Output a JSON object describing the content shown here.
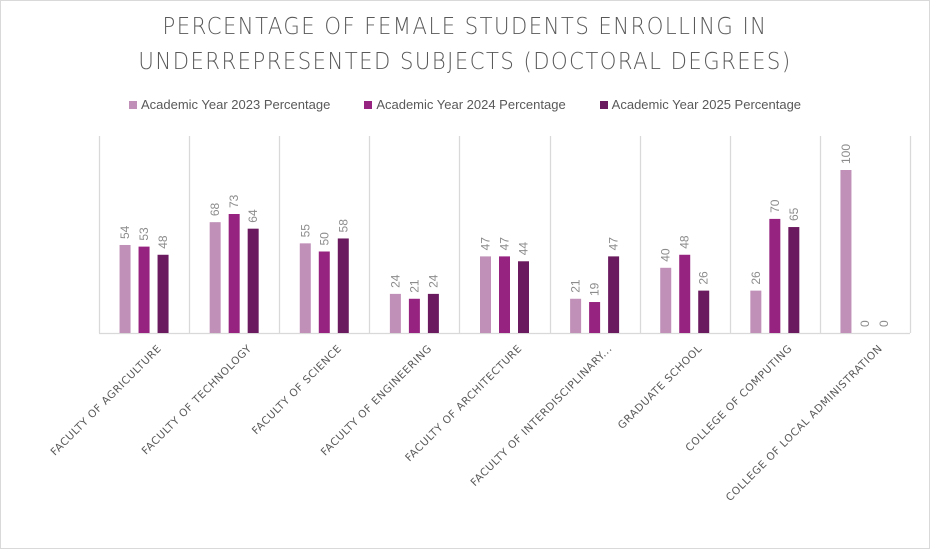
{
  "chart_data": {
    "type": "bar",
    "title": "PERCENTAGE OF FEMALE STUDENTS ENROLLING IN UNDERREPRESENTED SUBJECTS (DOCTORAL DEGREES)",
    "title_lines": [
      "PERCENTAGE OF FEMALE STUDENTS ENROLLING IN",
      "UNDERREPRESENTED SUBJECTS (DOCTORAL DEGREES)"
    ],
    "xlabel": "",
    "ylabel": "",
    "ylim": [
      0,
      120
    ],
    "grid": "vertical category separators",
    "legend_position": "top",
    "categories": [
      "FACULTY OF AGRICULTURE",
      "FACULTY OF TECHNOLOGY",
      "FACULTY OF SCIENCE",
      "FACULTY OF ENGINEERING",
      "FACULTY OF ARCHITECTURE",
      "FACULTY OF INTERDISCIPLINARY...",
      "GRADUATE SCHOOL",
      "COLLEGE OF COMPUTING",
      "COLLEGE OF LOCAL ADMINISTRATION"
    ],
    "series": [
      {
        "name": "Academic Year 2023 Percentage",
        "color": "#c090b8",
        "values": [
          54,
          68,
          55,
          24,
          47,
          21,
          40,
          26,
          100
        ]
      },
      {
        "name": "Academic Year 2024 Percentage",
        "color": "#96237f",
        "values": [
          53,
          73,
          50,
          21,
          47,
          19,
          48,
          70,
          0
        ]
      },
      {
        "name": "Academic Year 2025 Percentage",
        "color": "#6a1a5e",
        "values": [
          48,
          64,
          58,
          24,
          44,
          47,
          26,
          65,
          0
        ]
      }
    ]
  }
}
